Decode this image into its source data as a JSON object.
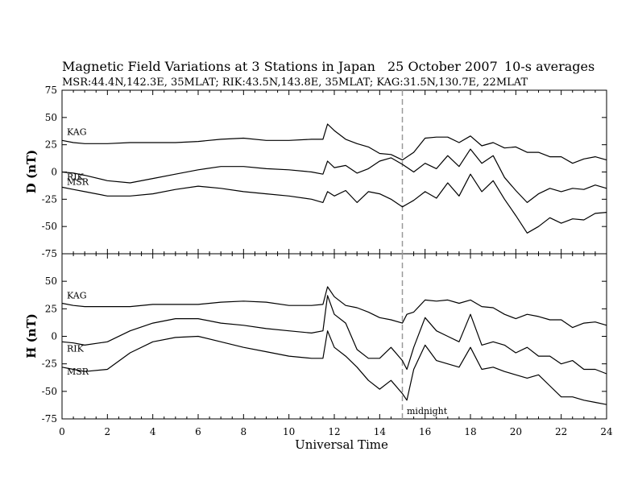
{
  "header": {
    "title": "Magnetic Field Variations at 3 Stations in Japan",
    "date": "25  October 2007",
    "averaging": "10-s averages",
    "stations": "MSR:44.4N,142.3E, 35MLAT;   RIK:43.5N,143.8E, 35MLAT;   KAG:31.5N,130.7E, 22MLAT"
  },
  "chart_data": [
    {
      "type": "line",
      "panel": "D",
      "ylabel": "D (nT)",
      "ylim": [
        -75,
        75
      ],
      "yticks": [
        75,
        50,
        25,
        0,
        -25,
        -50,
        -75
      ],
      "series": [
        {
          "name": "KAG",
          "x": [
            0,
            0.5,
            1,
            2,
            3,
            4,
            5,
            6,
            7,
            8,
            9,
            10,
            11,
            11.5,
            11.7,
            12,
            12.5,
            13,
            13.5,
            14,
            14.5,
            15,
            15.5,
            16,
            16.5,
            17,
            17.5,
            18,
            18.5,
            19,
            19.5,
            20,
            20.5,
            21,
            21.5,
            22,
            22.5,
            23,
            23.5,
            24
          ],
          "values": [
            29,
            27,
            26,
            26,
            27,
            27,
            27,
            28,
            30,
            31,
            29,
            29,
            30,
            30,
            44,
            38,
            30,
            26,
            23,
            17,
            16,
            11,
            18,
            31,
            32,
            32,
            27,
            33,
            24,
            27,
            22,
            23,
            18,
            18,
            14,
            14,
            8,
            12,
            14,
            11
          ]
        },
        {
          "name": "RIK",
          "x": [
            0,
            0.5,
            1,
            2,
            3,
            4,
            5,
            6,
            7,
            8,
            9,
            10,
            11,
            11.5,
            11.7,
            12,
            12.5,
            13,
            13.5,
            14,
            14.5,
            15,
            15.5,
            16,
            16.5,
            17,
            17.5,
            18,
            18.5,
            19,
            19.5,
            20,
            20.5,
            21,
            21.5,
            22,
            22.5,
            23,
            23.5,
            24
          ],
          "values": [
            0,
            -1,
            -3,
            -8,
            -10,
            -6,
            -2,
            2,
            5,
            5,
            3,
            2,
            0,
            -2,
            10,
            4,
            6,
            -1,
            3,
            10,
            13,
            7,
            0,
            8,
            3,
            15,
            5,
            21,
            8,
            15,
            -5,
            -17,
            -28,
            -20,
            -15,
            -18,
            -15,
            -16,
            -12,
            -15
          ]
        },
        {
          "name": "MSR",
          "x": [
            0,
            0.5,
            1,
            2,
            3,
            4,
            5,
            6,
            7,
            8,
            9,
            10,
            11,
            11.5,
            11.7,
            12,
            12.5,
            13,
            13.5,
            14,
            14.5,
            15,
            15.5,
            16,
            16.5,
            17,
            17.5,
            18,
            18.5,
            19,
            19.5,
            20,
            20.5,
            21,
            21.5,
            22,
            22.5,
            23,
            23.5,
            24
          ],
          "values": [
            -14,
            -16,
            -18,
            -22,
            -22,
            -20,
            -16,
            -13,
            -15,
            -18,
            -20,
            -22,
            -25,
            -28,
            -18,
            -22,
            -17,
            -28,
            -18,
            -20,
            -25,
            -32,
            -26,
            -18,
            -24,
            -10,
            -22,
            -2,
            -18,
            -8,
            -25,
            -40,
            -56,
            -50,
            -42,
            -47,
            -43,
            -44,
            -38,
            -37
          ]
        }
      ]
    },
    {
      "type": "line",
      "panel": "H",
      "xlabel": "Universal Time",
      "ylabel": "H (nT)",
      "xlim": [
        0,
        24
      ],
      "xticks": [
        0,
        2,
        4,
        6,
        8,
        10,
        12,
        14,
        16,
        18,
        20,
        22,
        24
      ],
      "ylim": [
        -75,
        75
      ],
      "yticks": [
        75,
        50,
        25,
        0,
        -25,
        -50,
        -75
      ],
      "series": [
        {
          "name": "KAG",
          "x": [
            0,
            0.5,
            1,
            2,
            3,
            4,
            5,
            6,
            7,
            8,
            9,
            10,
            11,
            11.5,
            11.7,
            12,
            12.5,
            13,
            13.5,
            14,
            14.5,
            15,
            15.2,
            15.5,
            16,
            16.5,
            17,
            17.5,
            18,
            18.5,
            19,
            19.5,
            20,
            20.5,
            21,
            21.5,
            22,
            22.5,
            23,
            23.5,
            24
          ],
          "values": [
            30,
            28,
            27,
            27,
            27,
            29,
            29,
            29,
            31,
            32,
            31,
            28,
            28,
            29,
            45,
            36,
            28,
            26,
            22,
            17,
            15,
            12,
            20,
            22,
            33,
            32,
            33,
            30,
            33,
            27,
            26,
            20,
            16,
            20,
            18,
            15,
            15,
            8,
            12,
            13,
            10
          ]
        },
        {
          "name": "RIK",
          "x": [
            0,
            0.5,
            1,
            2,
            3,
            4,
            5,
            6,
            7,
            8,
            9,
            10,
            11,
            11.5,
            11.7,
            12,
            12.5,
            13,
            13.5,
            14,
            14.5,
            15,
            15.2,
            15.5,
            16,
            16.5,
            17,
            17.5,
            18,
            18.5,
            19,
            19.5,
            20,
            20.5,
            21,
            21.5,
            22,
            22.5,
            23,
            23.5,
            24
          ],
          "values": [
            -5,
            -6,
            -8,
            -5,
            5,
            12,
            16,
            16,
            12,
            10,
            7,
            5,
            3,
            5,
            37,
            20,
            12,
            -12,
            -20,
            -20,
            -10,
            -22,
            -30,
            -10,
            17,
            5,
            0,
            -5,
            20,
            -8,
            -5,
            -8,
            -15,
            -10,
            -18,
            -18,
            -25,
            -22,
            -30,
            -30,
            -34
          ]
        },
        {
          "name": "MSR",
          "x": [
            0,
            0.5,
            1,
            2,
            3,
            4,
            5,
            6,
            7,
            8,
            9,
            10,
            11,
            11.5,
            11.7,
            12,
            12.5,
            13,
            13.5,
            14,
            14.5,
            15,
            15.2,
            15.5,
            16,
            16.5,
            17,
            17.5,
            18,
            18.5,
            19,
            19.5,
            20,
            20.5,
            21,
            21.5,
            22,
            22.5,
            23,
            23.5,
            24
          ],
          "values": [
            -28,
            -30,
            -32,
            -30,
            -15,
            -5,
            -1,
            0,
            -5,
            -10,
            -14,
            -18,
            -20,
            -20,
            5,
            -10,
            -18,
            -28,
            -40,
            -48,
            -40,
            -52,
            -58,
            -30,
            -8,
            -22,
            -25,
            -28,
            -10,
            -30,
            -28,
            -32,
            -35,
            -38,
            -35,
            -45,
            -55,
            -55,
            -58,
            -60,
            -62
          ]
        }
      ]
    }
  ],
  "annotations": {
    "midnight_label": "midnight",
    "midnight_x": 15
  }
}
